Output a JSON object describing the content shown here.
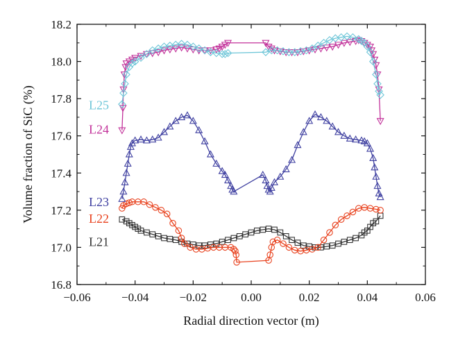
{
  "chart_data": {
    "type": "scatter",
    "title": "",
    "xlabel": "Radial direction vector (m)",
    "ylabel": "Volume fraction of SiC (%)",
    "xlim": [
      -0.06,
      0.06
    ],
    "ylim": [
      16.8,
      18.2
    ],
    "xticks": [
      -0.06,
      -0.04,
      -0.02,
      0.0,
      0.02,
      0.04,
      0.06
    ],
    "xtick_labels": [
      "−0.06",
      "−0.04",
      "−0.02",
      "0.00",
      "0.02",
      "0.04",
      "0.06"
    ],
    "yticks": [
      16.8,
      17.0,
      17.2,
      17.4,
      17.6,
      17.8,
      18.0,
      18.2
    ],
    "ytick_labels": [
      "16.8",
      "17.0",
      "17.2",
      "17.4",
      "17.6",
      "17.8",
      "18.0",
      "18.2"
    ],
    "grid": false,
    "legend": "inline labels at left",
    "series": [
      {
        "name": "L21",
        "color": "#333333",
        "marker": "square",
        "label_y": 17.03,
        "points": [
          [
            -0.0445,
            17.15
          ],
          [
            -0.043,
            17.14
          ],
          [
            -0.042,
            17.13
          ],
          [
            -0.041,
            17.12
          ],
          [
            -0.04,
            17.11
          ],
          [
            -0.039,
            17.1
          ],
          [
            -0.038,
            17.09
          ],
          [
            -0.036,
            17.08
          ],
          [
            -0.034,
            17.07
          ],
          [
            -0.032,
            17.06
          ],
          [
            -0.03,
            17.05
          ],
          [
            -0.028,
            17.045
          ],
          [
            -0.026,
            17.04
          ],
          [
            -0.024,
            17.03
          ],
          [
            -0.022,
            17.02
          ],
          [
            -0.02,
            17.015
          ],
          [
            -0.018,
            17.01
          ],
          [
            -0.016,
            17.01
          ],
          [
            -0.014,
            17.015
          ],
          [
            -0.012,
            17.02
          ],
          [
            -0.01,
            17.03
          ],
          [
            -0.008,
            17.04
          ],
          [
            -0.006,
            17.05
          ],
          [
            -0.004,
            17.06
          ],
          [
            -0.002,
            17.07
          ],
          [
            0.0,
            17.08
          ],
          [
            0.002,
            17.09
          ],
          [
            0.004,
            17.095
          ],
          [
            0.006,
            17.1
          ],
          [
            0.008,
            17.095
          ],
          [
            0.01,
            17.08
          ],
          [
            0.012,
            17.06
          ],
          [
            0.014,
            17.04
          ],
          [
            0.016,
            17.025
          ],
          [
            0.018,
            17.01
          ],
          [
            0.02,
            17.005
          ],
          [
            0.022,
            17.0
          ],
          [
            0.024,
            17.0
          ],
          [
            0.026,
            17.005
          ],
          [
            0.028,
            17.01
          ],
          [
            0.03,
            17.02
          ],
          [
            0.032,
            17.03
          ],
          [
            0.034,
            17.04
          ],
          [
            0.036,
            17.05
          ],
          [
            0.038,
            17.065
          ],
          [
            0.039,
            17.08
          ],
          [
            0.04,
            17.09
          ],
          [
            0.041,
            17.11
          ],
          [
            0.042,
            17.13
          ],
          [
            0.043,
            17.14
          ],
          [
            0.0445,
            17.17
          ]
        ]
      },
      {
        "name": "L22",
        "color": "#e8401c",
        "marker": "circle",
        "label_y": 17.155,
        "points": [
          [
            -0.0445,
            17.21
          ],
          [
            -0.044,
            17.225
          ],
          [
            -0.043,
            17.235
          ],
          [
            -0.042,
            17.24
          ],
          [
            -0.041,
            17.245
          ],
          [
            -0.039,
            17.245
          ],
          [
            -0.037,
            17.245
          ],
          [
            -0.035,
            17.23
          ],
          [
            -0.033,
            17.215
          ],
          [
            -0.031,
            17.2
          ],
          [
            -0.029,
            17.18
          ],
          [
            -0.027,
            17.13
          ],
          [
            -0.025,
            17.09
          ],
          [
            -0.024,
            17.05
          ],
          [
            -0.023,
            17.02
          ],
          [
            -0.021,
            17.0
          ],
          [
            -0.019,
            16.99
          ],
          [
            -0.017,
            16.99
          ],
          [
            -0.015,
            16.995
          ],
          [
            -0.013,
            17.0
          ],
          [
            -0.011,
            17.0
          ],
          [
            -0.009,
            17.0
          ],
          [
            -0.007,
            17.0
          ],
          [
            -0.006,
            16.99
          ],
          [
            -0.0055,
            16.98
          ],
          [
            -0.0052,
            16.96
          ],
          [
            -0.005,
            16.92
          ],
          [
            0.006,
            16.93
          ],
          [
            0.0065,
            16.96
          ],
          [
            0.007,
            17.0
          ],
          [
            0.0075,
            17.03
          ],
          [
            0.009,
            17.04
          ],
          [
            0.011,
            17.02
          ],
          [
            0.013,
            17.0
          ],
          [
            0.015,
            16.985
          ],
          [
            0.017,
            16.98
          ],
          [
            0.019,
            16.985
          ],
          [
            0.021,
            16.99
          ],
          [
            0.023,
            17.0
          ],
          [
            0.025,
            17.04
          ],
          [
            0.027,
            17.08
          ],
          [
            0.029,
            17.12
          ],
          [
            0.031,
            17.15
          ],
          [
            0.033,
            17.17
          ],
          [
            0.035,
            17.19
          ],
          [
            0.037,
            17.21
          ],
          [
            0.039,
            17.215
          ],
          [
            0.041,
            17.21
          ],
          [
            0.043,
            17.205
          ],
          [
            0.0445,
            17.2
          ]
        ]
      },
      {
        "name": "L23",
        "color": "#3e3fa0",
        "marker": "triangle",
        "label_y": 17.245,
        "points": [
          [
            -0.0445,
            17.26
          ],
          [
            -0.044,
            17.3
          ],
          [
            -0.0435,
            17.35
          ],
          [
            -0.043,
            17.4
          ],
          [
            -0.0425,
            17.45
          ],
          [
            -0.042,
            17.5
          ],
          [
            -0.0415,
            17.54
          ],
          [
            -0.041,
            17.56
          ],
          [
            -0.04,
            17.575
          ],
          [
            -0.038,
            17.58
          ],
          [
            -0.036,
            17.575
          ],
          [
            -0.034,
            17.58
          ],
          [
            -0.032,
            17.59
          ],
          [
            -0.03,
            17.62
          ],
          [
            -0.028,
            17.65
          ],
          [
            -0.026,
            17.68
          ],
          [
            -0.024,
            17.7
          ],
          [
            -0.022,
            17.71
          ],
          [
            -0.02,
            17.68
          ],
          [
            -0.018,
            17.63
          ],
          [
            -0.016,
            17.57
          ],
          [
            -0.014,
            17.5
          ],
          [
            -0.012,
            17.45
          ],
          [
            -0.01,
            17.41
          ],
          [
            -0.009,
            17.39
          ],
          [
            -0.008,
            17.36
          ],
          [
            -0.007,
            17.33
          ],
          [
            -0.0065,
            17.31
          ],
          [
            -0.006,
            17.3
          ],
          [
            0.004,
            17.39
          ],
          [
            0.005,
            17.36
          ],
          [
            0.0055,
            17.33
          ],
          [
            0.006,
            17.31
          ],
          [
            0.0065,
            17.3
          ],
          [
            0.007,
            17.32
          ],
          [
            0.008,
            17.35
          ],
          [
            0.01,
            17.38
          ],
          [
            0.012,
            17.42
          ],
          [
            0.014,
            17.47
          ],
          [
            0.016,
            17.55
          ],
          [
            0.018,
            17.62
          ],
          [
            0.02,
            17.68
          ],
          [
            0.022,
            17.715
          ],
          [
            0.024,
            17.7
          ],
          [
            0.026,
            17.68
          ],
          [
            0.028,
            17.65
          ],
          [
            0.03,
            17.62
          ],
          [
            0.032,
            17.6
          ],
          [
            0.034,
            17.585
          ],
          [
            0.036,
            17.58
          ],
          [
            0.038,
            17.575
          ],
          [
            0.039,
            17.57
          ],
          [
            0.04,
            17.56
          ],
          [
            0.041,
            17.53
          ],
          [
            0.042,
            17.48
          ],
          [
            0.0425,
            17.43
          ],
          [
            0.043,
            17.38
          ],
          [
            0.0435,
            17.33
          ],
          [
            0.044,
            17.29
          ],
          [
            0.0445,
            17.27
          ]
        ]
      },
      {
        "name": "L24",
        "color": "#c2319a",
        "marker": "triangle-down",
        "label_y": 17.635,
        "points": [
          [
            -0.0445,
            17.63
          ],
          [
            -0.0442,
            17.75
          ],
          [
            -0.044,
            17.85
          ],
          [
            -0.0437,
            17.93
          ],
          [
            -0.0433,
            17.97
          ],
          [
            -0.043,
            17.99
          ],
          [
            -0.042,
            18.0
          ],
          [
            -0.041,
            18.01
          ],
          [
            -0.04,
            18.02
          ],
          [
            -0.038,
            18.03
          ],
          [
            -0.036,
            18.04
          ],
          [
            -0.034,
            18.045
          ],
          [
            -0.032,
            18.05
          ],
          [
            -0.03,
            18.06
          ],
          [
            -0.028,
            18.065
          ],
          [
            -0.026,
            18.07
          ],
          [
            -0.024,
            18.075
          ],
          [
            -0.022,
            18.07
          ],
          [
            -0.02,
            18.065
          ],
          [
            -0.018,
            18.06
          ],
          [
            -0.016,
            18.06
          ],
          [
            -0.014,
            18.06
          ],
          [
            -0.012,
            18.065
          ],
          [
            -0.011,
            18.07
          ],
          [
            -0.01,
            18.08
          ],
          [
            -0.009,
            18.09
          ],
          [
            -0.008,
            18.1
          ],
          [
            0.005,
            18.1
          ],
          [
            0.006,
            18.08
          ],
          [
            0.007,
            18.07
          ],
          [
            0.008,
            18.06
          ],
          [
            0.01,
            18.055
          ],
          [
            0.012,
            18.05
          ],
          [
            0.014,
            18.05
          ],
          [
            0.016,
            18.05
          ],
          [
            0.018,
            18.055
          ],
          [
            0.02,
            18.06
          ],
          [
            0.022,
            18.065
          ],
          [
            0.024,
            18.07
          ],
          [
            0.026,
            18.075
          ],
          [
            0.028,
            18.08
          ],
          [
            0.03,
            18.09
          ],
          [
            0.032,
            18.1
          ],
          [
            0.034,
            18.105
          ],
          [
            0.036,
            18.11
          ],
          [
            0.037,
            18.115
          ],
          [
            0.038,
            18.11
          ],
          [
            0.039,
            18.1
          ],
          [
            0.04,
            18.09
          ],
          [
            0.041,
            18.08
          ],
          [
            0.0415,
            18.06
          ],
          [
            0.042,
            18.04
          ],
          [
            0.0425,
            18.01
          ],
          [
            0.043,
            17.98
          ],
          [
            0.0435,
            17.93
          ],
          [
            0.044,
            17.85
          ],
          [
            0.0445,
            17.68
          ]
        ]
      },
      {
        "name": "L25",
        "color": "#6ec6d8",
        "marker": "diamond",
        "label_y": 17.765,
        "points": [
          [
            -0.0445,
            17.77
          ],
          [
            -0.044,
            17.83
          ],
          [
            -0.0435,
            17.88
          ],
          [
            -0.043,
            17.93
          ],
          [
            -0.042,
            17.97
          ],
          [
            -0.041,
            17.99
          ],
          [
            -0.04,
            18.0
          ],
          [
            -0.038,
            18.02
          ],
          [
            -0.036,
            18.04
          ],
          [
            -0.034,
            18.06
          ],
          [
            -0.032,
            18.07
          ],
          [
            -0.03,
            18.08
          ],
          [
            -0.028,
            18.085
          ],
          [
            -0.026,
            18.09
          ],
          [
            -0.024,
            18.095
          ],
          [
            -0.022,
            18.09
          ],
          [
            -0.02,
            18.08
          ],
          [
            -0.018,
            18.07
          ],
          [
            -0.016,
            18.06
          ],
          [
            -0.014,
            18.05
          ],
          [
            -0.012,
            18.045
          ],
          [
            -0.01,
            18.04
          ],
          [
            -0.009,
            18.04
          ],
          [
            -0.008,
            18.045
          ],
          [
            0.005,
            18.05
          ],
          [
            0.007,
            18.06
          ],
          [
            0.009,
            18.06
          ],
          [
            0.011,
            18.055
          ],
          [
            0.013,
            18.05
          ],
          [
            0.015,
            18.05
          ],
          [
            0.017,
            18.055
          ],
          [
            0.019,
            18.06
          ],
          [
            0.021,
            18.07
          ],
          [
            0.023,
            18.085
          ],
          [
            0.025,
            18.1
          ],
          [
            0.027,
            18.115
          ],
          [
            0.029,
            18.125
          ],
          [
            0.031,
            18.13
          ],
          [
            0.033,
            18.135
          ],
          [
            0.035,
            18.13
          ],
          [
            0.037,
            18.12
          ],
          [
            0.038,
            18.11
          ],
          [
            0.039,
            18.1
          ],
          [
            0.04,
            18.08
          ],
          [
            0.041,
            18.05
          ],
          [
            0.042,
            18.0
          ],
          [
            0.043,
            17.93
          ],
          [
            0.0435,
            17.88
          ],
          [
            0.044,
            17.84
          ],
          [
            0.0445,
            17.82
          ]
        ]
      }
    ]
  }
}
